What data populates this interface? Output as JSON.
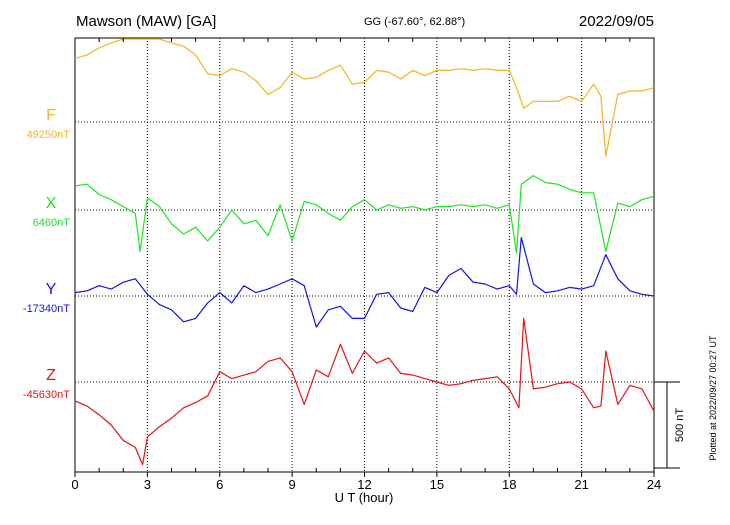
{
  "header": {
    "station": "Mawson (MAW)  [GA]",
    "coords": "GG (-67.60°,  62.88°)",
    "date": "2022/09/05"
  },
  "footer": {
    "plotted": "Plotted at 2022/09/27 00:27 UT"
  },
  "chart_data": {
    "type": "line",
    "xlabel": "U T (hour)",
    "xlim": [
      0,
      24
    ],
    "x_ticks": [
      0,
      3,
      6,
      9,
      12,
      15,
      18,
      21,
      24
    ],
    "y_unit_label": "nT",
    "scale_bar": {
      "value": 500,
      "label": "500 nT"
    },
    "grid": true,
    "colors": {
      "F": "#f5b41e",
      "X": "#1ee61e",
      "Y": "#1414dc",
      "Z": "#e61414"
    },
    "series": [
      {
        "name": "F",
        "baseline_label": "49250nT",
        "baseline": 49250,
        "x": [
          0,
          0.5,
          1,
          1.5,
          2,
          2.5,
          2.8,
          3,
          3.5,
          4,
          4.5,
          5,
          5.5,
          6,
          6.5,
          7,
          7.5,
          8,
          8.5,
          9,
          9.5,
          10,
          10.5,
          11,
          11.5,
          12,
          12.5,
          13,
          13.5,
          14,
          14.5,
          15,
          15.5,
          16,
          16.5,
          17,
          17.5,
          18,
          18.3,
          18.6,
          19,
          19.5,
          20,
          20.5,
          21,
          21.5,
          21.8,
          22,
          22.5,
          23,
          23.5,
          24
        ],
        "values": [
          370,
          390,
          430,
          460,
          490,
          500,
          590,
          560,
          500,
          460,
          440,
          390,
          280,
          270,
          310,
          290,
          240,
          160,
          200,
          290,
          250,
          260,
          300,
          330,
          220,
          230,
          300,
          290,
          250,
          300,
          270,
          300,
          300,
          310,
          300,
          310,
          300,
          300,
          200,
          80,
          120,
          120,
          120,
          150,
          120,
          220,
          150,
          -200,
          160,
          180,
          180,
          200
        ]
      },
      {
        "name": "X",
        "baseline_label": "6460nT",
        "baseline": 6460,
        "x": [
          0,
          0.5,
          1,
          1.5,
          2,
          2.5,
          2.7,
          3,
          3.5,
          4,
          4.5,
          5,
          5.5,
          6,
          6.5,
          7,
          7.5,
          8,
          8.5,
          9,
          9.5,
          10,
          10.5,
          11,
          11.5,
          12,
          12.5,
          13,
          13.5,
          14,
          14.5,
          15,
          15.5,
          16,
          16.5,
          17,
          17.5,
          18,
          18.3,
          18.5,
          19,
          19.5,
          20,
          20.5,
          21,
          21.5,
          22,
          22.5,
          23,
          23.5,
          24
        ],
        "values": [
          140,
          150,
          90,
          60,
          20,
          -20,
          -240,
          70,
          20,
          -80,
          -140,
          -100,
          -180,
          -100,
          0,
          -80,
          -60,
          -150,
          30,
          -180,
          50,
          30,
          -20,
          -60,
          20,
          60,
          0,
          30,
          10,
          20,
          0,
          20,
          20,
          30,
          20,
          30,
          10,
          30,
          -250,
          150,
          200,
          160,
          150,
          120,
          100,
          100,
          -240,
          40,
          20,
          60,
          80
        ]
      },
      {
        "name": "Y",
        "baseline_label": "-17340nT",
        "baseline": -17340,
        "x": [
          0,
          0.5,
          1,
          1.5,
          2,
          2.5,
          3,
          3.5,
          4,
          4.5,
          5,
          5.5,
          6,
          6.5,
          7,
          7.5,
          8,
          8.5,
          9,
          9.5,
          10,
          10.5,
          11,
          11.5,
          12,
          12.5,
          13,
          13.5,
          14,
          14.5,
          15,
          15.5,
          16,
          16.5,
          17,
          17.5,
          18,
          18.3,
          18.5,
          19,
          19.5,
          20,
          20.5,
          21,
          21.5,
          22,
          22.5,
          23,
          23.5,
          24
        ],
        "values": [
          20,
          30,
          60,
          40,
          80,
          100,
          10,
          -50,
          -80,
          -150,
          -130,
          -40,
          20,
          -40,
          60,
          20,
          40,
          70,
          100,
          60,
          -180,
          -80,
          -60,
          -130,
          -130,
          10,
          20,
          -70,
          -90,
          50,
          20,
          120,
          160,
          80,
          70,
          40,
          60,
          10,
          340,
          70,
          20,
          30,
          50,
          40,
          60,
          240,
          100,
          30,
          10,
          0
        ]
      },
      {
        "name": "Z",
        "baseline_label": "-45630nT",
        "baseline": -45630,
        "x": [
          0,
          0.5,
          1,
          1.5,
          2,
          2.5,
          2.8,
          3,
          3.5,
          4,
          4.5,
          5,
          5.5,
          6,
          6.5,
          7,
          7.5,
          8,
          8.5,
          9,
          9.5,
          10,
          10.5,
          11,
          11.5,
          12,
          12.5,
          13,
          13.5,
          14,
          14.5,
          15,
          15.5,
          16,
          16.5,
          17,
          17.5,
          18,
          18.4,
          18.6,
          19,
          19.5,
          20,
          20.5,
          21,
          21.5,
          21.8,
          22,
          22.5,
          23,
          23.5,
          24
        ],
        "values": [
          -110,
          -140,
          -190,
          -250,
          -340,
          -380,
          -480,
          -320,
          -260,
          -210,
          -150,
          -120,
          -80,
          60,
          20,
          40,
          60,
          120,
          140,
          60,
          -130,
          70,
          30,
          220,
          50,
          180,
          110,
          140,
          50,
          40,
          20,
          0,
          -20,
          -10,
          10,
          20,
          30,
          -40,
          -150,
          370,
          -40,
          -30,
          -10,
          0,
          -40,
          -150,
          -140,
          180,
          -130,
          -20,
          -40,
          -170
        ]
      }
    ]
  }
}
